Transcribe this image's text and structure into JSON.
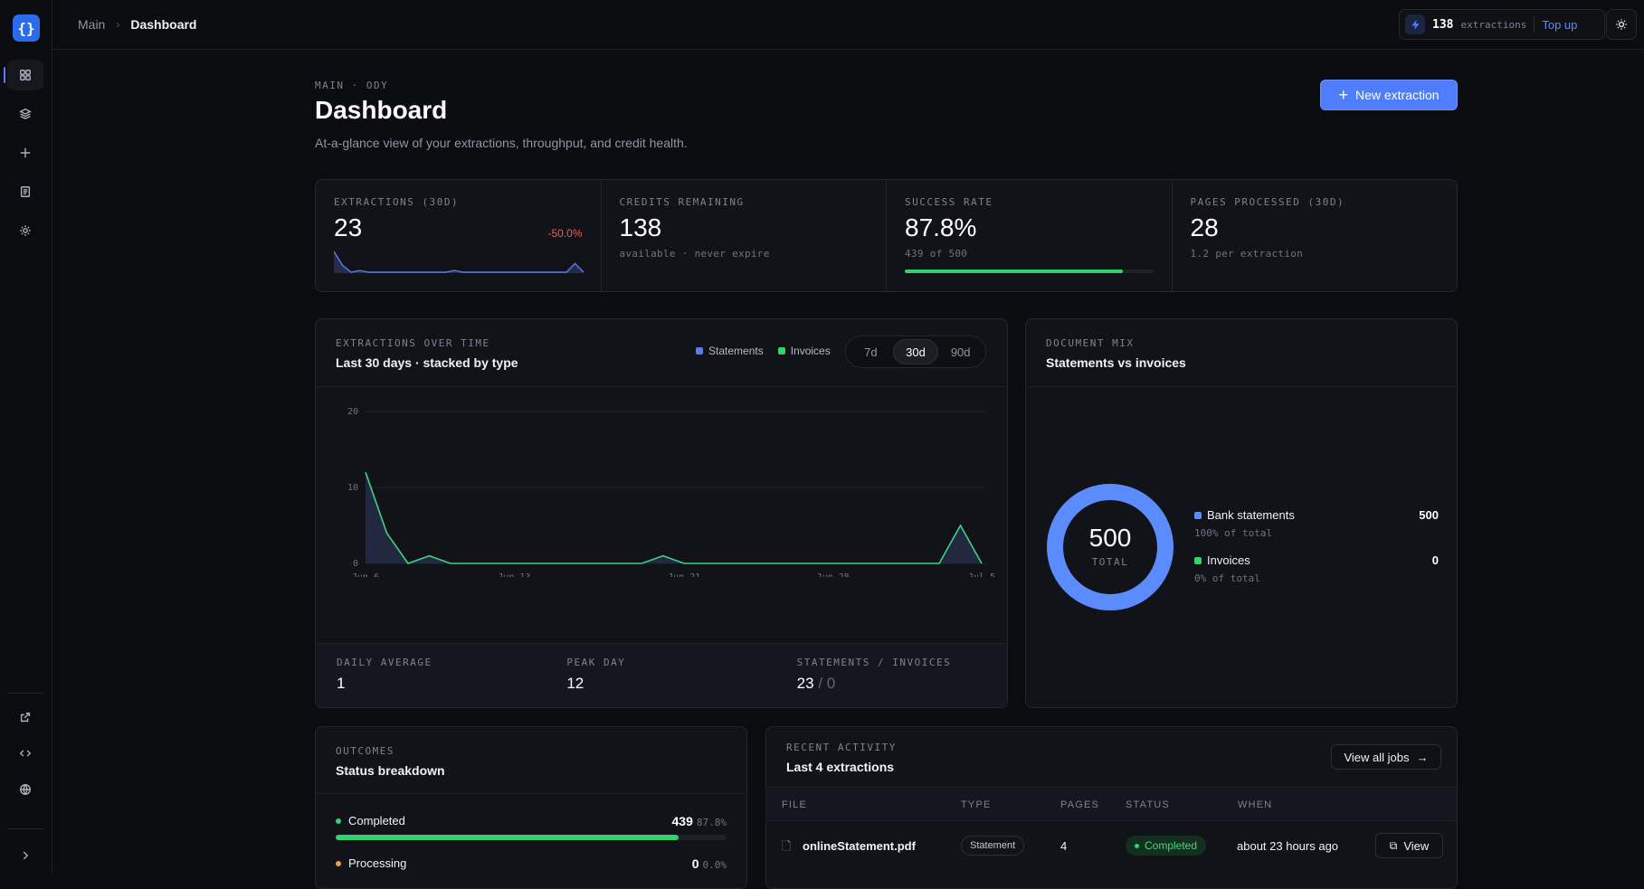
{
  "logo_text": "{}",
  "breadcrumb": {
    "root": "Main",
    "current": "Dashboard"
  },
  "credits_pill": {
    "count": "138",
    "unit": "extractions",
    "top_up": "Top up"
  },
  "sidebar": {
    "items": [
      "dashboard-icon",
      "layers-icon",
      "plus-icon",
      "document-icon",
      "gear-icon"
    ],
    "bottom": [
      "external-link-icon",
      "code-icon",
      "globe-icon",
      "chevron-right-icon"
    ]
  },
  "page": {
    "eyebrow": "MAIN · ODY",
    "title": "Dashboard",
    "subtitle": "At-a-glance view of your extractions, throughput, and credit health.",
    "new_button": "New extraction"
  },
  "stats": {
    "extractions": {
      "label": "EXTRACTIONS (30D)",
      "value": "23",
      "delta": "-50.0%"
    },
    "credits": {
      "label": "CREDITS REMAINING",
      "value": "138",
      "note": "available · never expire"
    },
    "success": {
      "label": "SUCCESS RATE",
      "value": "87.8%",
      "note": "439 of 500",
      "progress": 0.878
    },
    "pages": {
      "label": "PAGES PROCESSED (30D)",
      "value": "28",
      "note": "1.2 per extraction"
    }
  },
  "over_time": {
    "eyebrow": "EXTRACTIONS OVER TIME",
    "title": "Last 30 days · stacked by type",
    "legend": {
      "statements": "Statements",
      "invoices": "Invoices"
    },
    "ranges": [
      "7d",
      "30d",
      "90d"
    ],
    "active_range": "30d",
    "footer": {
      "daily_avg_label": "DAILY AVERAGE",
      "daily_avg": "1",
      "peak_label": "PEAK DAY",
      "peak": "12",
      "split_label": "STATEMENTS / INVOICES",
      "split_statements": "23",
      "split_invoices": "/ 0"
    }
  },
  "mix": {
    "eyebrow": "DOCUMENT MIX",
    "title": "Statements vs invoices",
    "total": "500",
    "total_label": "TOTAL",
    "items": [
      {
        "name": "Bank statements",
        "value": "500",
        "sub": "100% of total"
      },
      {
        "name": "Invoices",
        "value": "0",
        "sub": "0% of total"
      }
    ]
  },
  "outcomes": {
    "eyebrow": "OUTCOMES",
    "title": "Status breakdown",
    "rows": [
      {
        "name": "Completed",
        "count": "439",
        "pct": "87.8%",
        "fraction": 0.878
      },
      {
        "name": "Processing",
        "count": "0",
        "pct": "0.0%",
        "fraction": 0
      }
    ]
  },
  "activity": {
    "eyebrow": "RECENT ACTIVITY",
    "title": "Last 4 extractions",
    "view_all": "View all jobs",
    "columns": [
      "FILE",
      "TYPE",
      "PAGES",
      "STATUS",
      "WHEN"
    ],
    "rows": [
      {
        "file": "onlineStatement.pdf",
        "type": "Statement",
        "pages": "4",
        "status": "Completed",
        "when": "about 23 hours ago",
        "action": "View"
      }
    ]
  },
  "colors": {
    "accent": "#4f7dff",
    "success": "#34d06a",
    "danger": "#f25c54"
  },
  "chart_data": [
    {
      "type": "line",
      "title": "",
      "x": [
        "Jun 6",
        "Jun 7",
        "Jun 8",
        "Jun 9",
        "Jun 10",
        "Jun 11",
        "Jun 12",
        "Jun 13",
        "Jun 14",
        "Jun 15",
        "Jun 16",
        "Jun 17",
        "Jun 18",
        "Jun 19",
        "Jun 20",
        "Jun 21",
        "Jun 22",
        "Jun 23",
        "Jun 24",
        "Jun 25",
        "Jun 26",
        "Jun 27",
        "Jun 28",
        "Jun 29",
        "Jun 30",
        "Jul 1",
        "Jul 2",
        "Jul 3",
        "Jul 4",
        "Jul 5"
      ],
      "series": [
        {
          "name": "Extractions",
          "values": [
            12,
            4,
            0,
            1,
            0,
            0,
            0,
            0,
            0,
            0,
            0,
            0,
            0,
            0,
            1,
            0,
            0,
            0,
            0,
            0,
            0,
            0,
            0,
            0,
            0,
            0,
            0,
            0,
            5,
            0
          ]
        }
      ],
      "x_ticks": [
        "Jun 6",
        "Jun 13",
        "Jun 21",
        "Jun 28",
        "Jul 5"
      ],
      "y_ticks": [
        "0",
        "10",
        "20"
      ],
      "ylim": [
        0,
        20
      ],
      "grid": true
    },
    {
      "type": "pie",
      "categories": [
        "Bank statements",
        "Invoices"
      ],
      "values": [
        500,
        0
      ]
    }
  ]
}
